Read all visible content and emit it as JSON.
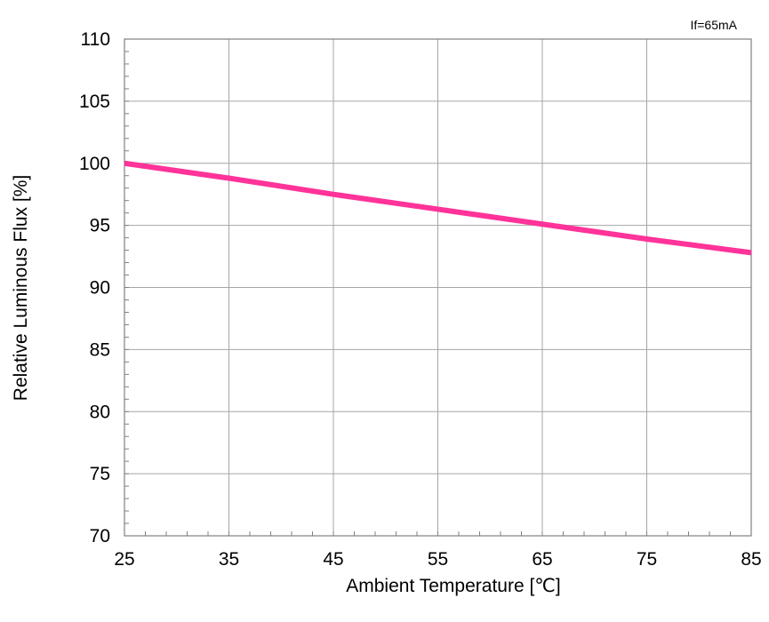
{
  "chart_data": {
    "type": "line",
    "title": "",
    "annotation": "If=65mA",
    "xlabel": "Ambient Temperature [℃]",
    "ylabel": "Relative Luminous Flux [%]",
    "xlim": [
      25,
      85
    ],
    "ylim": [
      70,
      110
    ],
    "x_ticks": [
      25,
      35,
      45,
      55,
      65,
      75,
      85
    ],
    "y_ticks": [
      70,
      75,
      80,
      85,
      90,
      95,
      100,
      105,
      110
    ],
    "x_minor_step": 2,
    "y_minor_step": 1,
    "grid": true,
    "series": [
      {
        "color": "#ff3399",
        "x": [
          25,
          35,
          45,
          55,
          65,
          75,
          85
        ],
        "y": [
          100.0,
          98.8,
          97.5,
          96.3,
          95.1,
          93.9,
          92.8
        ]
      }
    ]
  }
}
